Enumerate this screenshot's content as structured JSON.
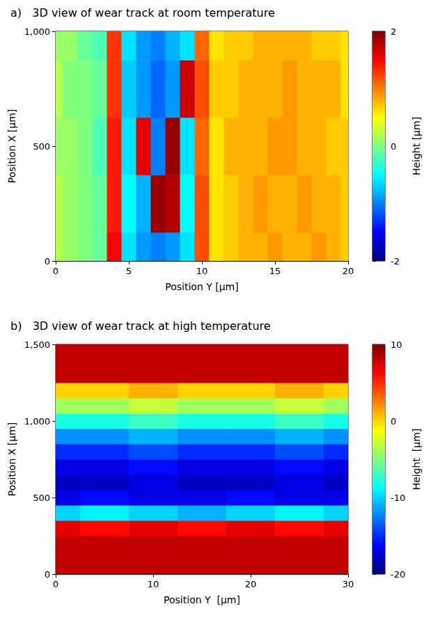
{
  "chart_data": [
    {
      "type": "surface",
      "title": "a)   3D view of wear track at room temperature",
      "x_label": "Position Y [μm]",
      "y_label": "Position X [μm]",
      "z_label": "Height [μm]",
      "x": [
        0,
        1,
        2,
        3,
        4,
        5,
        6,
        7,
        8,
        9,
        10,
        11,
        12,
        13,
        14,
        15,
        16,
        17,
        18,
        19,
        20
      ],
      "y": [
        0,
        250,
        500,
        750,
        1000
      ],
      "z": [
        [
          0.2,
          0.1,
          0.0,
          -0.1,
          1.5,
          -0.6,
          -0.9,
          -1.0,
          -0.9,
          -0.6,
          1.2,
          0.6,
          0.7,
          0.8,
          0.8,
          0.9,
          0.8,
          0.8,
          0.9,
          0.8,
          0.7
        ],
        [
          0.2,
          0.1,
          0.0,
          -0.1,
          1.4,
          -0.5,
          -0.8,
          1.9,
          1.8,
          -0.5,
          1.2,
          0.6,
          0.7,
          0.8,
          0.9,
          0.8,
          0.8,
          0.9,
          0.8,
          0.8,
          0.7
        ],
        [
          0.1,
          0.1,
          0.0,
          -0.2,
          1.4,
          -0.6,
          1.6,
          -1.0,
          1.9,
          -0.6,
          1.1,
          0.6,
          0.8,
          0.8,
          0.8,
          0.9,
          0.9,
          0.8,
          0.8,
          0.7,
          0.7
        ],
        [
          0.2,
          0.0,
          0.0,
          -0.1,
          1.3,
          -0.7,
          -0.9,
          -1.1,
          -0.9,
          1.7,
          1.2,
          0.7,
          0.7,
          0.8,
          0.8,
          0.8,
          0.9,
          0.8,
          0.8,
          0.8,
          0.6
        ],
        [
          0.1,
          0.1,
          -0.1,
          -0.2,
          1.3,
          -0.6,
          -0.9,
          -1.0,
          -0.8,
          -0.6,
          1.1,
          0.6,
          0.7,
          0.7,
          0.8,
          0.8,
          0.8,
          0.8,
          0.7,
          0.7,
          0.6
        ]
      ],
      "xlim": [
        0,
        20
      ],
      "xticks": [
        0,
        5,
        10,
        15,
        20
      ],
      "ylim": [
        0,
        1000
      ],
      "yticks": [
        0,
        500,
        1000
      ],
      "zlim": [
        -2,
        2
      ],
      "zticks": [
        -2,
        0,
        2
      ],
      "grid": true
    },
    {
      "type": "surface",
      "title": "b)   3D view of wear track at high temperature",
      "x_label": "Position Y  [μm]",
      "y_label": "Position X [μm]",
      "z_label": "Height  [μm]",
      "x": [
        0,
        5,
        10,
        15,
        20,
        25,
        30
      ],
      "y": [
        0,
        100,
        200,
        300,
        400,
        500,
        600,
        700,
        800,
        900,
        1000,
        1100,
        1200,
        1300,
        1400,
        1500
      ],
      "z": [
        [
          8,
          8,
          8,
          8,
          8,
          8,
          8
        ],
        [
          8,
          8,
          8,
          8,
          8,
          8,
          8
        ],
        [
          8,
          8,
          8,
          8,
          8,
          8,
          8
        ],
        [
          7,
          6,
          7,
          6,
          7,
          6,
          7
        ],
        [
          -10,
          -9,
          -10,
          -11,
          -10,
          -9,
          -10
        ],
        [
          -17,
          -16,
          -17,
          -17,
          -16,
          -17,
          -17
        ],
        [
          -18,
          -18,
          -17,
          -18,
          -18,
          -17,
          -18
        ],
        [
          -17,
          -17,
          -16,
          -17,
          -17,
          -16,
          -17
        ],
        [
          -15,
          -15,
          -14,
          -15,
          -15,
          -14,
          -15
        ],
        [
          -12,
          -12,
          -11,
          -12,
          -12,
          -11,
          -12
        ],
        [
          -8,
          -8,
          -7,
          -8,
          -8,
          -7,
          -8
        ],
        [
          -4,
          -4,
          -3,
          -4,
          -4,
          -3,
          -4
        ],
        [
          0,
          0,
          1,
          0,
          0,
          1,
          0
        ],
        [
          8,
          8,
          8,
          8,
          8,
          8,
          8
        ],
        [
          8,
          8,
          8,
          8,
          8,
          8,
          8
        ],
        [
          8,
          8,
          8,
          8,
          8,
          8,
          8
        ]
      ],
      "xlim": [
        0,
        30
      ],
      "xticks": [
        0,
        10,
        20,
        30
      ],
      "ylim": [
        0,
        1500
      ],
      "yticks": [
        0,
        500,
        1000,
        1500
      ],
      "zlim": [
        -20,
        10
      ],
      "zticks": [
        -20,
        -10,
        0,
        10
      ],
      "grid": true
    }
  ]
}
